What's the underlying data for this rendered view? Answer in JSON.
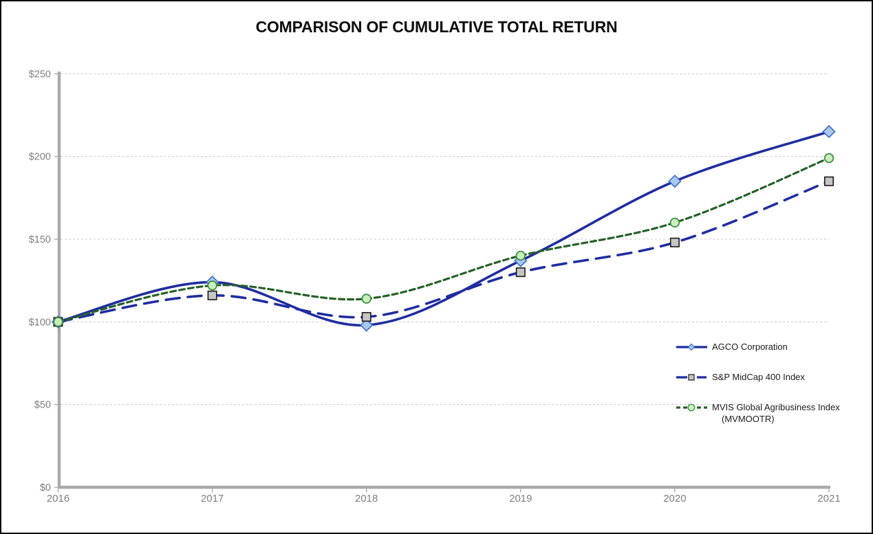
{
  "chart_data": {
    "type": "line",
    "title": "COMPARISON OF CUMULATIVE TOTAL RETURN",
    "categories": [
      "2016",
      "2017",
      "2018",
      "2019",
      "2020",
      "2021"
    ],
    "xlabel": "",
    "ylabel": "",
    "ylim": [
      0,
      250
    ],
    "grid": true,
    "legend_position": "right-middle",
    "y_ticks": [
      {
        "value": 250,
        "label": "$250"
      },
      {
        "value": 200,
        "label": "$200"
      },
      {
        "value": 150,
        "label": "$150"
      },
      {
        "value": 100,
        "label": "$100"
      },
      {
        "value": 50,
        "label": "$50"
      },
      {
        "value": 0,
        "label": "$0"
      }
    ],
    "series": [
      {
        "name": "AGCO Corporation",
        "label_lines": [
          "AGCO Corporation"
        ],
        "values": [
          100,
          124,
          98,
          137,
          185,
          215
        ],
        "line_color": "#1F2DA0",
        "line_style": "solid",
        "marker": "diamond",
        "marker_fill": "#A9C7F1",
        "marker_stroke": "#3A6CC6"
      },
      {
        "name": "S&P MidCap 400 Index",
        "label_lines": [
          "S&P MidCap 400 Index"
        ],
        "values": [
          100,
          116,
          103,
          130,
          148,
          185
        ],
        "line_color": "#1F2DA0",
        "line_style": "long-dash",
        "marker": "square",
        "marker_fill": "#C6C6C6",
        "marker_stroke": "#1A1A1A"
      },
      {
        "name": "MVIS Global Agribusiness Index (MVMOOTR)",
        "label_lines": [
          "MVIS Global Agribusiness Index",
          "(MVMOOTR)"
        ],
        "values": [
          100,
          122,
          114,
          140,
          160,
          199
        ],
        "line_color": "#27612A",
        "line_style": "short-dash",
        "marker": "circle",
        "marker_fill": "#C9EFBD",
        "marker_stroke": "#3F8F43"
      }
    ],
    "colors": {
      "axis": "#A9A9A9",
      "gridline": "#C9C9C9",
      "tick_label": "#7F7F7F",
      "title": "#0D0D0D",
      "legend_text": "#1A1A1A",
      "background": "#FFFFFF",
      "border": "#000000"
    }
  }
}
